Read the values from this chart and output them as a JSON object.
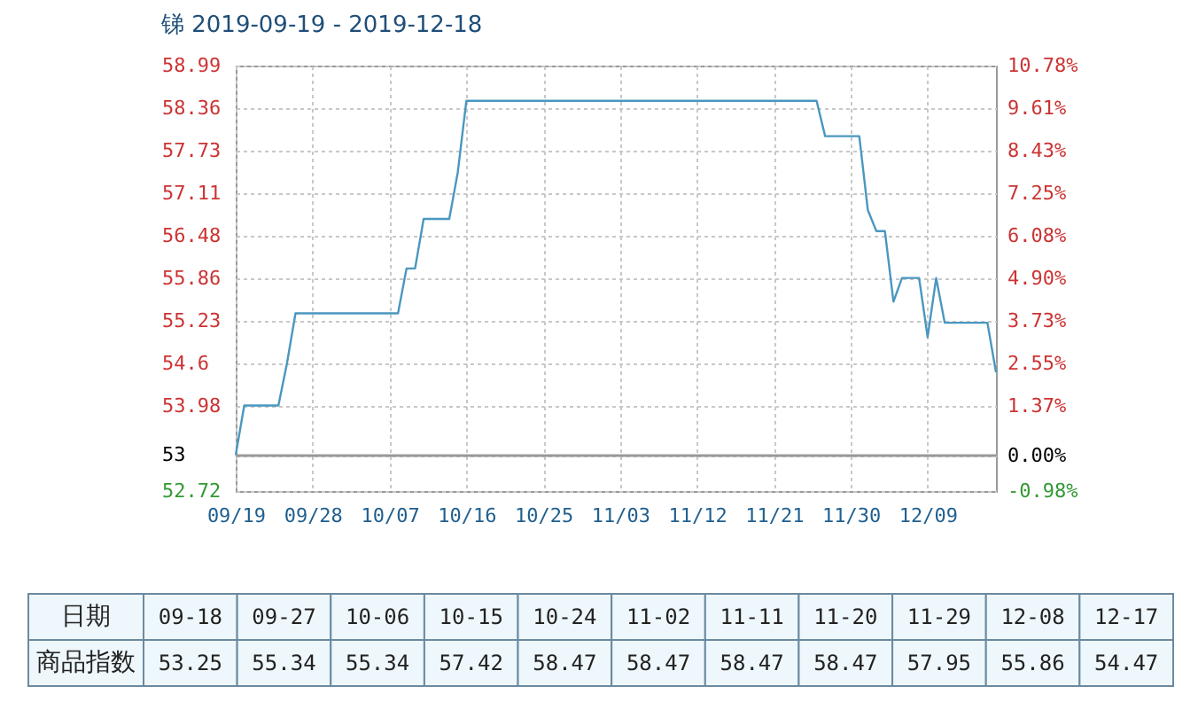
{
  "chart_data": [
    {
      "type": "line",
      "title": "锑 2019-09-19 - 2019-12-18",
      "x": [
        "2019-09-19",
        "2019-09-20",
        "2019-09-24",
        "2019-09-25",
        "2019-09-26",
        "2019-10-08",
        "2019-10-09",
        "2019-10-10",
        "2019-10-11",
        "2019-10-14",
        "2019-10-15",
        "2019-10-16",
        "2019-11-26",
        "2019-11-27",
        "2019-12-01",
        "2019-12-02",
        "2019-12-03",
        "2019-12-04",
        "2019-12-05",
        "2019-12-06",
        "2019-12-08",
        "2019-12-09",
        "2019-12-10",
        "2019-12-11",
        "2019-12-16",
        "2019-12-17"
      ],
      "series": [
        {
          "color": "#4a97c0",
          "values": [
            53.25,
            53.98,
            53.98,
            54.6,
            55.34,
            55.34,
            56.0,
            56.0,
            56.73,
            56.73,
            57.42,
            58.47,
            58.47,
            57.95,
            57.95,
            56.86,
            56.55,
            56.55,
            55.51,
            55.86,
            55.86,
            54.99,
            55.86,
            55.2,
            55.2,
            54.47
          ]
        }
      ],
      "xlim": [
        "2019-09-19",
        "2019-12-17"
      ],
      "xticks": [
        {
          "value": "2019-09-19",
          "label": "09/19"
        },
        {
          "value": "2019-09-28",
          "label": "09/28"
        },
        {
          "value": "2019-10-07",
          "label": "10/07"
        },
        {
          "value": "2019-10-16",
          "label": "10/16"
        },
        {
          "value": "2019-10-25",
          "label": "10/25"
        },
        {
          "value": "2019-11-03",
          "label": "11/03"
        },
        {
          "value": "2019-11-12",
          "label": "11/12"
        },
        {
          "value": "2019-11-21",
          "label": "11/21"
        },
        {
          "value": "2019-11-30",
          "label": "11/30"
        },
        {
          "value": "2019-12-09",
          "label": "12/09"
        }
      ],
      "ylim": [
        52.72,
        58.99
      ],
      "yticks": [
        52.72,
        {
          "value": 53.25,
          "label": "53"
        },
        53.98,
        54.6,
        55.23,
        55.86,
        56.48,
        57.11,
        57.73,
        58.36,
        58.99
      ],
      "y2lim": [
        -0.98,
        10.78
      ],
      "y2ticks": [
        {
          "value": -0.98,
          "label": "-0.98%"
        },
        {
          "value": 0,
          "label": "0.00%"
        },
        {
          "value": 1.37,
          "label": "1.37%"
        },
        {
          "value": 2.55,
          "label": "2.55%"
        },
        {
          "value": 3.73,
          "label": "3.73%"
        },
        {
          "value": 4.9,
          "label": "4.90%"
        },
        {
          "value": 6.08,
          "label": "6.08%"
        },
        {
          "value": 7.25,
          "label": "7.25%"
        },
        {
          "value": 8.43,
          "label": "8.43%"
        },
        {
          "value": 9.61,
          "label": "9.61%"
        },
        {
          "value": 10.78,
          "label": "10.78%"
        }
      ],
      "ref_lines": [
        {
          "axis": "y2",
          "value": 0,
          "color": "#999999"
        }
      ],
      "grid": true
    },
    {
      "type": "other",
      "xlabel": "日期",
      "ylabel": "商品指数",
      "categories": [
        "09-18",
        "09-27",
        "10-06",
        "10-15",
        "10-24",
        "11-02",
        "11-11",
        "11-20",
        "11-29",
        "12-08",
        "12-17"
      ],
      "values": [
        53.25,
        55.34,
        55.34,
        57.42,
        58.47,
        58.47,
        58.47,
        58.47,
        57.95,
        55.86,
        54.47
      ],
      "data_labels": true
    }
  ]
}
